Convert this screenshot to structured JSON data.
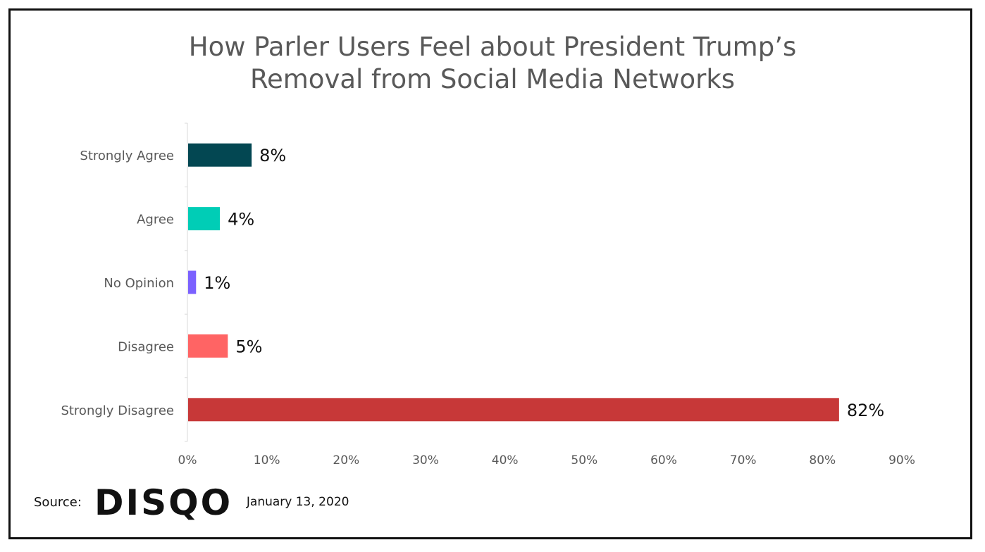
{
  "chart_data": {
    "type": "bar",
    "orientation": "horizontal",
    "title_lines": [
      "How Parler Users Feel about President Trump’s",
      "Removal from Social Media Networks"
    ],
    "categories": [
      "Strongly Agree",
      "Agree",
      "No Opinion",
      "Disagree",
      "Strongly Disagree"
    ],
    "values": [
      8,
      4,
      1,
      5,
      82
    ],
    "data_labels": [
      "8%",
      "4%",
      "1%",
      "5%",
      "82%"
    ],
    "colors": [
      "#034752",
      "#00CDB6",
      "#7B61FF",
      "#FF6464",
      "#C73838"
    ],
    "xlim": [
      0,
      90
    ],
    "x_ticks": [
      0,
      10,
      20,
      30,
      40,
      50,
      60,
      70,
      80,
      90
    ],
    "x_tick_labels": [
      "0%",
      "10%",
      "20%",
      "30%",
      "40%",
      "50%",
      "60%",
      "70%",
      "80%",
      "90%"
    ],
    "grid": false,
    "legend": "none"
  },
  "footer": {
    "source_label": "Source:",
    "logo_text": "DISQO",
    "date": "January 13, 2020"
  }
}
